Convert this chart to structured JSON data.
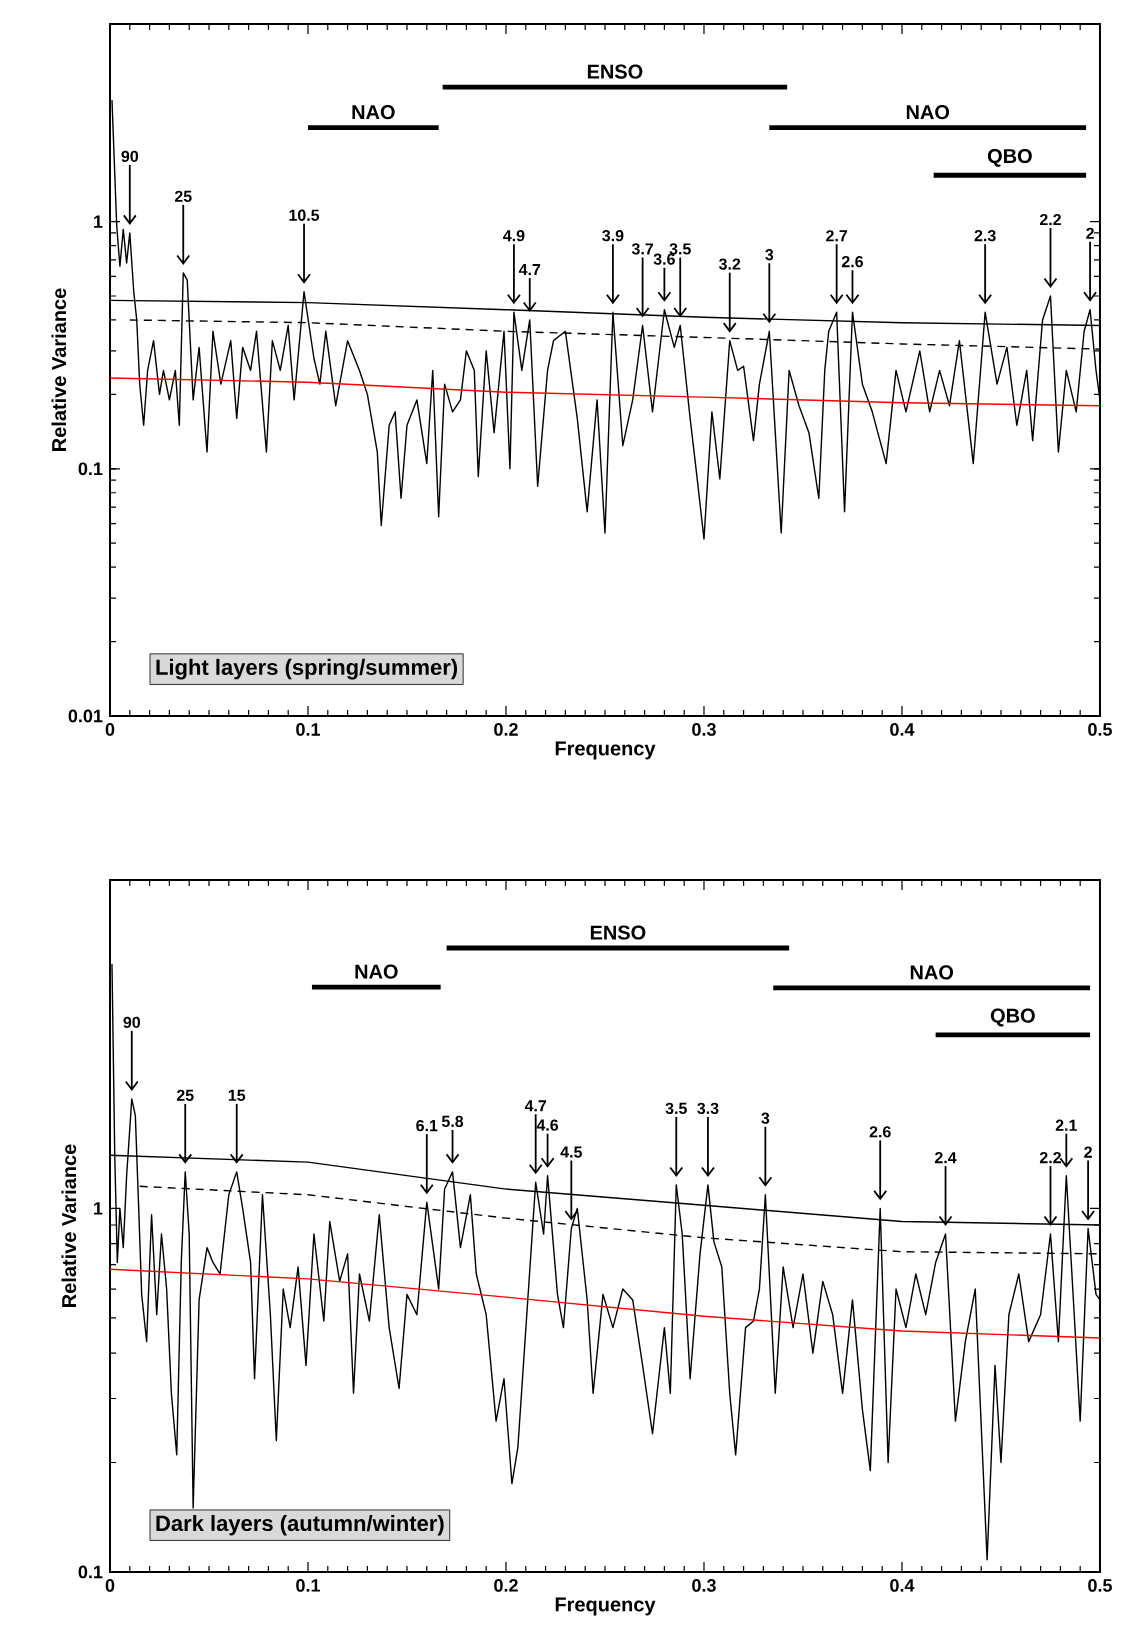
{
  "chart_data": [
    {
      "type": "line",
      "xlabel": "Frequency",
      "ylabel": "Relative Variance",
      "xlim": [
        0,
        0.5
      ],
      "xticks": [
        0,
        0.1,
        0.2,
        0.3,
        0.4,
        0.5
      ],
      "ylim": [
        0.01,
        6.3
      ],
      "yticks": [
        0.01,
        0.1,
        1
      ],
      "log": "y",
      "series": [
        {
          "color": "#000000",
          "x": [
            0.001,
            0.0034,
            0.005,
            0.0067,
            0.0084,
            0.01,
            0.012,
            0.0135,
            0.015,
            0.017,
            0.019,
            0.022,
            0.025,
            0.027,
            0.03,
            0.033,
            0.035,
            0.037,
            0.039,
            0.042,
            0.045,
            0.049,
            0.052,
            0.056,
            0.061,
            0.064,
            0.067,
            0.071,
            0.074,
            0.079,
            0.082,
            0.086,
            0.09,
            0.093,
            0.098,
            0.103,
            0.106,
            0.109,
            0.114,
            0.12,
            0.126,
            0.13,
            0.135,
            0.137,
            0.141,
            0.144,
            0.147,
            0.15,
            0.155,
            0.16,
            0.163,
            0.166,
            0.169,
            0.173,
            0.177,
            0.18,
            0.184,
            0.186,
            0.19,
            0.194,
            0.199,
            0.202,
            0.204,
            0.208,
            0.212,
            0.216,
            0.221,
            0.224,
            0.23,
            0.236,
            0.241,
            0.246,
            0.25,
            0.254,
            0.259,
            0.264,
            0.269,
            0.274,
            0.28,
            0.285,
            0.288,
            0.293,
            0.296,
            0.3,
            0.304,
            0.308,
            0.313,
            0.317,
            0.32,
            0.325,
            0.328,
            0.333,
            0.339,
            0.343,
            0.348,
            0.353,
            0.358,
            0.361,
            0.363,
            0.367,
            0.371,
            0.375,
            0.38,
            0.385,
            0.392,
            0.397,
            0.402,
            0.409,
            0.414,
            0.419,
            0.424,
            0.429,
            0.436,
            0.442,
            0.448,
            0.453,
            0.458,
            0.463,
            0.466,
            0.471,
            0.475,
            0.479,
            0.483,
            0.488,
            0.492,
            0.495,
            0.498,
            0.5
          ],
          "values": [
            3.1,
            0.96,
            0.66,
            0.93,
            0.68,
            0.9,
            0.52,
            0.4,
            0.22,
            0.15,
            0.25,
            0.33,
            0.2,
            0.25,
            0.19,
            0.25,
            0.15,
            0.62,
            0.58,
            0.19,
            0.31,
            0.117,
            0.36,
            0.22,
            0.33,
            0.16,
            0.31,
            0.25,
            0.36,
            0.117,
            0.33,
            0.25,
            0.38,
            0.19,
            0.52,
            0.28,
            0.22,
            0.36,
            0.18,
            0.33,
            0.25,
            0.2,
            0.117,
            0.059,
            0.15,
            0.17,
            0.076,
            0.15,
            0.19,
            0.105,
            0.25,
            0.064,
            0.22,
            0.17,
            0.19,
            0.3,
            0.25,
            0.093,
            0.3,
            0.14,
            0.36,
            0.1,
            0.43,
            0.25,
            0.4,
            0.085,
            0.25,
            0.33,
            0.36,
            0.16,
            0.067,
            0.19,
            0.055,
            0.43,
            0.124,
            0.19,
            0.38,
            0.17,
            0.44,
            0.31,
            0.38,
            0.16,
            0.1,
            0.052,
            0.17,
            0.091,
            0.33,
            0.25,
            0.26,
            0.13,
            0.22,
            0.36,
            0.055,
            0.25,
            0.18,
            0.14,
            0.076,
            0.25,
            0.36,
            0.43,
            0.067,
            0.43,
            0.22,
            0.17,
            0.105,
            0.25,
            0.17,
            0.3,
            0.17,
            0.25,
            0.18,
            0.33,
            0.105,
            0.43,
            0.22,
            0.31,
            0.15,
            0.25,
            0.13,
            0.4,
            0.5,
            0.117,
            0.25,
            0.17,
            0.36,
            0.44,
            0.25,
            0.19
          ]
        },
        {
          "color": "#000000",
          "x": [
            0,
            0.1,
            0.2,
            0.3,
            0.4,
            0.5
          ],
          "values": [
            0.48,
            0.47,
            0.44,
            0.41,
            0.39,
            0.38
          ]
        },
        {
          "color": "#000000",
          "line_style": "dashed",
          "x": [
            0.01,
            0.1,
            0.2,
            0.3,
            0.4,
            0.5
          ],
          "values": [
            0.4,
            0.39,
            0.36,
            0.34,
            0.32,
            0.305
          ]
        },
        {
          "color": "#ff0000",
          "x": [
            0,
            0.1,
            0.2,
            0.3,
            0.4,
            0.5
          ],
          "values": [
            0.233,
            0.224,
            0.204,
            0.195,
            0.185,
            0.18
          ]
        },
        {
          "name": "NAO",
          "color": "#000000",
          "x": [
            0.1,
            0.166
          ],
          "values": [
            2.4,
            2.4
          ]
        },
        {
          "name": "ENSO",
          "color": "#000000",
          "x": [
            0.168,
            0.342
          ],
          "values": [
            3.5,
            3.5
          ]
        },
        {
          "name": "NAO",
          "color": "#000000",
          "x": [
            0.333,
            0.493
          ],
          "values": [
            2.4,
            2.4
          ]
        },
        {
          "name": "QBO",
          "color": "#000000",
          "x": [
            0.416,
            0.493
          ],
          "values": [
            1.54,
            1.54
          ]
        }
      ],
      "annotations": [
        "Light layers (spring/summer)",
        {
          "text": "90",
          "x": 0.01,
          "y": 0.9
        },
        {
          "text": "25",
          "x": 0.037,
          "y": 0.62
        },
        {
          "text": "10.5",
          "x": 0.098,
          "y": 0.52
        },
        {
          "text": "4.9",
          "x": 0.204,
          "y": 0.43
        },
        {
          "text": "4.7",
          "x": 0.212,
          "y": 0.4
        },
        {
          "text": "3.9",
          "x": 0.254,
          "y": 0.43
        },
        {
          "text": "3.7",
          "x": 0.269,
          "y": 0.38
        },
        {
          "text": "3.6",
          "x": 0.28,
          "y": 0.44
        },
        {
          "text": "3.5",
          "x": 0.288,
          "y": 0.38
        },
        {
          "text": "3.2",
          "x": 0.313,
          "y": 0.33
        },
        {
          "text": "3",
          "x": 0.333,
          "y": 0.36
        },
        {
          "text": "2.7",
          "x": 0.367,
          "y": 0.43
        },
        {
          "text": "2.6",
          "x": 0.375,
          "y": 0.43
        },
        {
          "text": "2.3",
          "x": 0.442,
          "y": 0.43
        },
        {
          "text": "2.2",
          "x": 0.475,
          "y": 0.5
        },
        {
          "text": "2",
          "x": 0.495,
          "y": 0.44
        }
      ]
    },
    {
      "type": "line",
      "xlabel": "Frequency",
      "ylabel": "Relative Variance",
      "xlim": [
        0,
        0.5
      ],
      "xticks": [
        0,
        0.1,
        0.2,
        0.3,
        0.4,
        0.5
      ],
      "ylim": [
        0.1,
        8
      ],
      "yticks": [
        0.1,
        1
      ],
      "log": "y",
      "series": [
        {
          "color": "#000000",
          "x": [
            0.001,
            0.0024,
            0.0037,
            0.005,
            0.0067,
            0.0084,
            0.011,
            0.0128,
            0.0145,
            0.016,
            0.0185,
            0.021,
            0.0236,
            0.026,
            0.0286,
            0.031,
            0.0337,
            0.036,
            0.038,
            0.04,
            0.042,
            0.045,
            0.049,
            0.052,
            0.0556,
            0.06,
            0.064,
            0.067,
            0.071,
            0.073,
            0.077,
            0.081,
            0.084,
            0.0875,
            0.091,
            0.095,
            0.099,
            0.103,
            0.108,
            0.111,
            0.116,
            0.12,
            0.123,
            0.126,
            0.131,
            0.136,
            0.141,
            0.146,
            0.15,
            0.155,
            0.16,
            0.166,
            0.169,
            0.173,
            0.177,
            0.182,
            0.185,
            0.19,
            0.195,
            0.199,
            0.203,
            0.206,
            0.211,
            0.215,
            0.219,
            0.221,
            0.226,
            0.229,
            0.233,
            0.236,
            0.241,
            0.244,
            0.249,
            0.254,
            0.259,
            0.264,
            0.269,
            0.274,
            0.28,
            0.283,
            0.286,
            0.289,
            0.293,
            0.298,
            0.302,
            0.305,
            0.309,
            0.313,
            0.316,
            0.321,
            0.325,
            0.328,
            0.331,
            0.336,
            0.34,
            0.345,
            0.35,
            0.355,
            0.36,
            0.365,
            0.37,
            0.375,
            0.38,
            0.384,
            0.389,
            0.393,
            0.397,
            0.402,
            0.407,
            0.412,
            0.417,
            0.422,
            0.427,
            0.432,
            0.437,
            0.443,
            0.447,
            0.45,
            0.454,
            0.459,
            0.464,
            0.47,
            0.475,
            0.479,
            0.483,
            0.487,
            0.49,
            0.494,
            0.498,
            0.5
          ],
          "values": [
            4.7,
            1.4,
            0.71,
            1.0,
            0.78,
            1.23,
            2.0,
            1.8,
            1.0,
            0.58,
            0.43,
            0.96,
            0.51,
            0.85,
            0.6,
            0.31,
            0.21,
            0.71,
            1.26,
            0.85,
            0.15,
            0.56,
            0.78,
            0.71,
            0.66,
            1.09,
            1.26,
            1.0,
            0.71,
            0.34,
            1.09,
            0.51,
            0.23,
            0.6,
            0.47,
            0.69,
            0.37,
            0.85,
            0.49,
            0.92,
            0.63,
            0.75,
            0.31,
            0.66,
            0.49,
            0.96,
            0.47,
            0.32,
            0.58,
            0.51,
            1.04,
            0.6,
            1.13,
            1.26,
            0.78,
            1.09,
            0.66,
            0.51,
            0.26,
            0.34,
            0.175,
            0.22,
            0.56,
            1.18,
            0.85,
            1.23,
            0.58,
            0.47,
            0.88,
            1.0,
            0.56,
            0.31,
            0.58,
            0.47,
            0.6,
            0.56,
            0.37,
            0.24,
            0.47,
            0.31,
            1.16,
            0.85,
            0.34,
            0.75,
            1.16,
            0.81,
            0.69,
            0.31,
            0.21,
            0.47,
            0.49,
            0.6,
            1.09,
            0.31,
            0.69,
            0.47,
            0.66,
            0.4,
            0.63,
            0.51,
            0.31,
            0.56,
            0.28,
            0.19,
            1.0,
            0.2,
            0.6,
            0.47,
            0.66,
            0.51,
            0.71,
            0.85,
            0.26,
            0.43,
            0.6,
            0.108,
            0.37,
            0.2,
            0.51,
            0.66,
            0.43,
            0.51,
            0.85,
            0.43,
            1.23,
            0.51,
            0.26,
            0.88,
            0.58,
            0.56
          ]
        },
        {
          "color": "#000000",
          "x": [
            0,
            0.1,
            0.2,
            0.3,
            0.4,
            0.5
          ],
          "values": [
            1.4,
            1.34,
            1.13,
            1.02,
            0.92,
            0.9
          ]
        },
        {
          "color": "#000000",
          "line_style": "dashed",
          "x": [
            0.015,
            0.1,
            0.2,
            0.3,
            0.4,
            0.5
          ],
          "values": [
            1.15,
            1.09,
            0.94,
            0.83,
            0.76,
            0.75
          ]
        },
        {
          "color": "#ff0000",
          "x": [
            0,
            0.1,
            0.2,
            0.3,
            0.4,
            0.5
          ],
          "values": [
            0.68,
            0.64,
            0.57,
            0.505,
            0.46,
            0.44
          ]
        },
        {
          "name": "NAO",
          "color": "#000000",
          "x": [
            0.102,
            0.167
          ],
          "values": [
            4.06,
            4.06
          ]
        },
        {
          "name": "ENSO",
          "color": "#000000",
          "x": [
            0.17,
            0.343
          ],
          "values": [
            5.2,
            5.2
          ]
        },
        {
          "name": "NAO",
          "color": "#000000",
          "x": [
            0.335,
            0.495
          ],
          "values": [
            4.04,
            4.04
          ]
        },
        {
          "name": "QBO",
          "color": "#000000",
          "x": [
            0.417,
            0.495
          ],
          "values": [
            3.0,
            3.0
          ]
        }
      ],
      "annotations": [
        "Dark layers (autumn/winter)",
        {
          "text": "90",
          "x": 0.011,
          "y": 2.0
        },
        {
          "text": "25",
          "x": 0.038,
          "y": 1.26
        },
        {
          "text": "15",
          "x": 0.064,
          "y": 1.26
        },
        {
          "text": "6.1",
          "x": 0.16,
          "y": 1.04
        },
        {
          "text": "5.8",
          "x": 0.173,
          "y": 1.26
        },
        {
          "text": "4.7",
          "x": 0.215,
          "y": 1.18
        },
        {
          "text": "4.6",
          "x": 0.221,
          "y": 1.23
        },
        {
          "text": "4.5",
          "x": 0.233,
          "y": 0.88
        },
        {
          "text": "3.5",
          "x": 0.286,
          "y": 1.16
        },
        {
          "text": "3.3",
          "x": 0.302,
          "y": 1.16
        },
        {
          "text": "3",
          "x": 0.331,
          "y": 1.09
        },
        {
          "text": "2.6",
          "x": 0.389,
          "y": 1.0
        },
        {
          "text": "2.4",
          "x": 0.422,
          "y": 0.85
        },
        {
          "text": "2.2",
          "x": 0.475,
          "y": 0.85
        },
        {
          "text": "2.1",
          "x": 0.483,
          "y": 1.23
        },
        {
          "text": "2",
          "x": 0.494,
          "y": 0.88
        }
      ]
    }
  ]
}
